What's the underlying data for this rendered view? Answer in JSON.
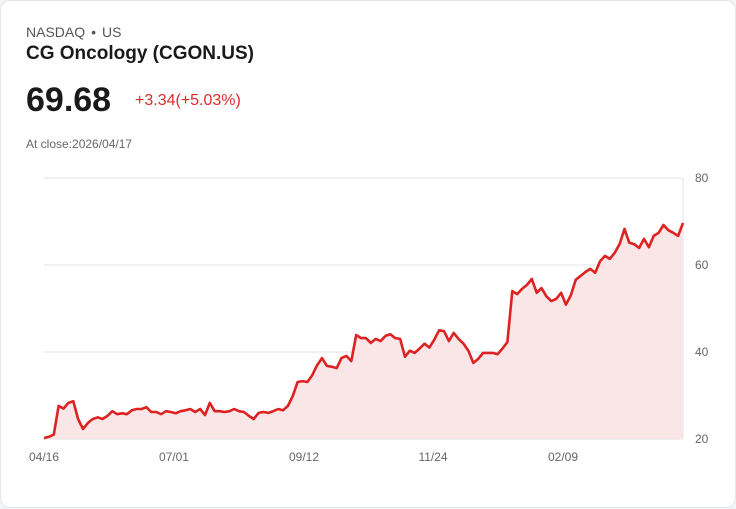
{
  "header": {
    "exchange": "NASDAQ",
    "separator": "•",
    "region": "US",
    "title": "CG Oncology (CGON.US)",
    "price": "69.68",
    "change": "+3.34(+5.03%)",
    "close_label": "At close:2026/04/17"
  },
  "colors": {
    "line": "#dd2222",
    "fill": "#fae6e6",
    "grid": "#e3e3e3",
    "up": "#e02b2b"
  },
  "chart_data": {
    "type": "area",
    "title": "",
    "xlabel": "",
    "ylabel": "",
    "ylim": [
      20,
      80
    ],
    "yticks": [
      80,
      60,
      40,
      20
    ],
    "ytick_labels": [
      "80",
      "60",
      "40",
      "20"
    ],
    "xtick_labels": [
      "04/16",
      "07/01",
      "09/12",
      "11/24",
      "02/09"
    ],
    "xtick_positions": [
      0,
      0.2034,
      0.4069,
      0.6088,
      0.8122
    ],
    "grid": true,
    "axis_side": "right",
    "series": [
      {
        "name": "CGON.US",
        "values": [
          20.2,
          20.5,
          21,
          27.6,
          27,
          28.3,
          28.7,
          24.6,
          22.3,
          23.7,
          24.6,
          25,
          24.6,
          25.3,
          26.4,
          25.7,
          25.9,
          25.7,
          26.6,
          26.9,
          26.9,
          27.3,
          26.2,
          26.2,
          25.7,
          26.4,
          26.2,
          25.9,
          26.4,
          26.6,
          26.9,
          26.2,
          26.9,
          25.5,
          28.3,
          26.4,
          26.4,
          26.2,
          26.4,
          26.9,
          26.4,
          26.2,
          25.3,
          24.6,
          26,
          26.2,
          26,
          26.4,
          26.9,
          26.6,
          27.6,
          29.9,
          33.1,
          33.3,
          33.1,
          34.7,
          37,
          38.6,
          36.8,
          36.6,
          36.3,
          38.6,
          39.1,
          37.9,
          43.9,
          43.2,
          43.2,
          42.1,
          43,
          42.5,
          43.7,
          44.1,
          43.2,
          43,
          38.9,
          40.3,
          39.8,
          40.8,
          41.9,
          41,
          42.8,
          45,
          44.8,
          42.5,
          44.4,
          43,
          41.9,
          40.3,
          37.5,
          38.4,
          39.8,
          39.8,
          39.8,
          39.5,
          40.8,
          42.3,
          54,
          53.3,
          54.5,
          55.4,
          56.8,
          53.6,
          54.7,
          52.8,
          51.7,
          52.2,
          53.6,
          50.9,
          53,
          56.6,
          57.5,
          58.4,
          59.1,
          58.2,
          60.9,
          62.1,
          61.4,
          62.8,
          64.8,
          68.3,
          65.1,
          64.8,
          63.9,
          66,
          64.1,
          66.7,
          67.4,
          69.2,
          68,
          67.4,
          66.7,
          69.68
        ]
      }
    ]
  }
}
